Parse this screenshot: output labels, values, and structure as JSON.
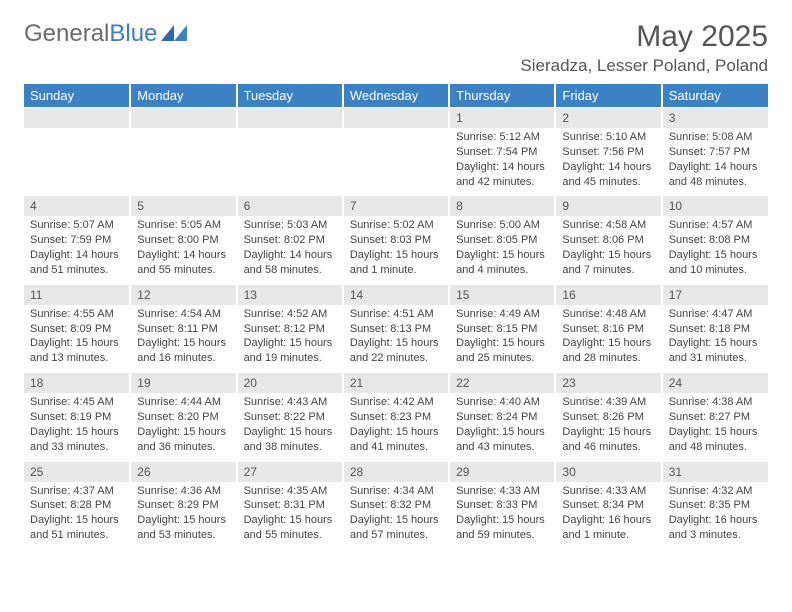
{
  "logo": {
    "text1": "General",
    "text2": "Blue"
  },
  "title": "May 2025",
  "location": "Sieradza, Lesser Poland, Poland",
  "colors": {
    "header_bg": "#3b82c4",
    "header_fg": "#ffffff",
    "num_row_bg": "#e8e8e8",
    "text": "#444444",
    "title": "#555555"
  },
  "day_names": [
    "Sunday",
    "Monday",
    "Tuesday",
    "Wednesday",
    "Thursday",
    "Friday",
    "Saturday"
  ],
  "weeks": [
    {
      "days": [
        {
          "num": "",
          "sunrise": "",
          "sunset": "",
          "daylight": ""
        },
        {
          "num": "",
          "sunrise": "",
          "sunset": "",
          "daylight": ""
        },
        {
          "num": "",
          "sunrise": "",
          "sunset": "",
          "daylight": ""
        },
        {
          "num": "",
          "sunrise": "",
          "sunset": "",
          "daylight": ""
        },
        {
          "num": "1",
          "sunrise": "Sunrise: 5:12 AM",
          "sunset": "Sunset: 7:54 PM",
          "daylight": "Daylight: 14 hours and 42 minutes."
        },
        {
          "num": "2",
          "sunrise": "Sunrise: 5:10 AM",
          "sunset": "Sunset: 7:56 PM",
          "daylight": "Daylight: 14 hours and 45 minutes."
        },
        {
          "num": "3",
          "sunrise": "Sunrise: 5:08 AM",
          "sunset": "Sunset: 7:57 PM",
          "daylight": "Daylight: 14 hours and 48 minutes."
        }
      ]
    },
    {
      "days": [
        {
          "num": "4",
          "sunrise": "Sunrise: 5:07 AM",
          "sunset": "Sunset: 7:59 PM",
          "daylight": "Daylight: 14 hours and 51 minutes."
        },
        {
          "num": "5",
          "sunrise": "Sunrise: 5:05 AM",
          "sunset": "Sunset: 8:00 PM",
          "daylight": "Daylight: 14 hours and 55 minutes."
        },
        {
          "num": "6",
          "sunrise": "Sunrise: 5:03 AM",
          "sunset": "Sunset: 8:02 PM",
          "daylight": "Daylight: 14 hours and 58 minutes."
        },
        {
          "num": "7",
          "sunrise": "Sunrise: 5:02 AM",
          "sunset": "Sunset: 8:03 PM",
          "daylight": "Daylight: 15 hours and 1 minute."
        },
        {
          "num": "8",
          "sunrise": "Sunrise: 5:00 AM",
          "sunset": "Sunset: 8:05 PM",
          "daylight": "Daylight: 15 hours and 4 minutes."
        },
        {
          "num": "9",
          "sunrise": "Sunrise: 4:58 AM",
          "sunset": "Sunset: 8:06 PM",
          "daylight": "Daylight: 15 hours and 7 minutes."
        },
        {
          "num": "10",
          "sunrise": "Sunrise: 4:57 AM",
          "sunset": "Sunset: 8:08 PM",
          "daylight": "Daylight: 15 hours and 10 minutes."
        }
      ]
    },
    {
      "days": [
        {
          "num": "11",
          "sunrise": "Sunrise: 4:55 AM",
          "sunset": "Sunset: 8:09 PM",
          "daylight": "Daylight: 15 hours and 13 minutes."
        },
        {
          "num": "12",
          "sunrise": "Sunrise: 4:54 AM",
          "sunset": "Sunset: 8:11 PM",
          "daylight": "Daylight: 15 hours and 16 minutes."
        },
        {
          "num": "13",
          "sunrise": "Sunrise: 4:52 AM",
          "sunset": "Sunset: 8:12 PM",
          "daylight": "Daylight: 15 hours and 19 minutes."
        },
        {
          "num": "14",
          "sunrise": "Sunrise: 4:51 AM",
          "sunset": "Sunset: 8:13 PM",
          "daylight": "Daylight: 15 hours and 22 minutes."
        },
        {
          "num": "15",
          "sunrise": "Sunrise: 4:49 AM",
          "sunset": "Sunset: 8:15 PM",
          "daylight": "Daylight: 15 hours and 25 minutes."
        },
        {
          "num": "16",
          "sunrise": "Sunrise: 4:48 AM",
          "sunset": "Sunset: 8:16 PM",
          "daylight": "Daylight: 15 hours and 28 minutes."
        },
        {
          "num": "17",
          "sunrise": "Sunrise: 4:47 AM",
          "sunset": "Sunset: 8:18 PM",
          "daylight": "Daylight: 15 hours and 31 minutes."
        }
      ]
    },
    {
      "days": [
        {
          "num": "18",
          "sunrise": "Sunrise: 4:45 AM",
          "sunset": "Sunset: 8:19 PM",
          "daylight": "Daylight: 15 hours and 33 minutes."
        },
        {
          "num": "19",
          "sunrise": "Sunrise: 4:44 AM",
          "sunset": "Sunset: 8:20 PM",
          "daylight": "Daylight: 15 hours and 36 minutes."
        },
        {
          "num": "20",
          "sunrise": "Sunrise: 4:43 AM",
          "sunset": "Sunset: 8:22 PM",
          "daylight": "Daylight: 15 hours and 38 minutes."
        },
        {
          "num": "21",
          "sunrise": "Sunrise: 4:42 AM",
          "sunset": "Sunset: 8:23 PM",
          "daylight": "Daylight: 15 hours and 41 minutes."
        },
        {
          "num": "22",
          "sunrise": "Sunrise: 4:40 AM",
          "sunset": "Sunset: 8:24 PM",
          "daylight": "Daylight: 15 hours and 43 minutes."
        },
        {
          "num": "23",
          "sunrise": "Sunrise: 4:39 AM",
          "sunset": "Sunset: 8:26 PM",
          "daylight": "Daylight: 15 hours and 46 minutes."
        },
        {
          "num": "24",
          "sunrise": "Sunrise: 4:38 AM",
          "sunset": "Sunset: 8:27 PM",
          "daylight": "Daylight: 15 hours and 48 minutes."
        }
      ]
    },
    {
      "days": [
        {
          "num": "25",
          "sunrise": "Sunrise: 4:37 AM",
          "sunset": "Sunset: 8:28 PM",
          "daylight": "Daylight: 15 hours and 51 minutes."
        },
        {
          "num": "26",
          "sunrise": "Sunrise: 4:36 AM",
          "sunset": "Sunset: 8:29 PM",
          "daylight": "Daylight: 15 hours and 53 minutes."
        },
        {
          "num": "27",
          "sunrise": "Sunrise: 4:35 AM",
          "sunset": "Sunset: 8:31 PM",
          "daylight": "Daylight: 15 hours and 55 minutes."
        },
        {
          "num": "28",
          "sunrise": "Sunrise: 4:34 AM",
          "sunset": "Sunset: 8:32 PM",
          "daylight": "Daylight: 15 hours and 57 minutes."
        },
        {
          "num": "29",
          "sunrise": "Sunrise: 4:33 AM",
          "sunset": "Sunset: 8:33 PM",
          "daylight": "Daylight: 15 hours and 59 minutes."
        },
        {
          "num": "30",
          "sunrise": "Sunrise: 4:33 AM",
          "sunset": "Sunset: 8:34 PM",
          "daylight": "Daylight: 16 hours and 1 minute."
        },
        {
          "num": "31",
          "sunrise": "Sunrise: 4:32 AM",
          "sunset": "Sunset: 8:35 PM",
          "daylight": "Daylight: 16 hours and 3 minutes."
        }
      ]
    }
  ]
}
